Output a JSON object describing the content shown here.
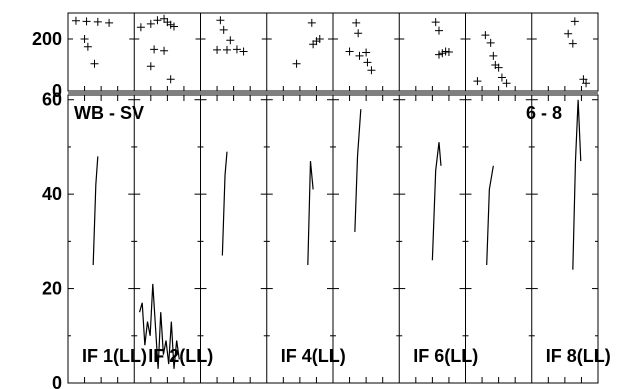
{
  "chart_data": {
    "type": "line",
    "title_left": "WB - SV",
    "title_right": "6 - 8",
    "top_panel": {
      "y_ticks": [
        0,
        200
      ],
      "ylim": [
        0,
        300
      ]
    },
    "main_panel": {
      "y_ticks": [
        0,
        20,
        40,
        60
      ],
      "ylim": [
        0,
        61
      ]
    },
    "panels": [
      {
        "label": "IF 1(LL)",
        "top_points": [
          [
            0.12,
            270
          ],
          [
            0.28,
            268
          ],
          [
            0.45,
            266
          ],
          [
            0.62,
            262
          ],
          [
            0.25,
            200
          ],
          [
            0.3,
            170
          ],
          [
            0.4,
            105
          ]
        ],
        "series": [
          [
            0.38,
            25
          ],
          [
            0.42,
            42
          ],
          [
            0.45,
            48
          ]
        ]
      },
      {
        "label": "IF 2(LL)",
        "top_points": [
          [
            0.1,
            245
          ],
          [
            0.25,
            258
          ],
          [
            0.35,
            272
          ],
          [
            0.45,
            278
          ],
          [
            0.5,
            265
          ],
          [
            0.55,
            255
          ],
          [
            0.6,
            248
          ],
          [
            0.3,
            160
          ],
          [
            0.45,
            155
          ],
          [
            0.25,
            95
          ],
          [
            0.55,
            45
          ]
        ],
        "series": [
          [
            0.08,
            15
          ],
          [
            0.12,
            17
          ],
          [
            0.16,
            8
          ],
          [
            0.2,
            13
          ],
          [
            0.24,
            10
          ],
          [
            0.28,
            21
          ],
          [
            0.32,
            12
          ],
          [
            0.36,
            3
          ],
          [
            0.4,
            15
          ],
          [
            0.44,
            6
          ],
          [
            0.48,
            9
          ],
          [
            0.52,
            4
          ],
          [
            0.56,
            13
          ],
          [
            0.6,
            3
          ],
          [
            0.64,
            9
          ],
          [
            0.68,
            5
          ]
        ]
      },
      {
        "label": "",
        "top_points": [
          [
            0.3,
            272
          ],
          [
            0.35,
            235
          ],
          [
            0.25,
            158
          ],
          [
            0.4,
            158
          ],
          [
            0.55,
            160
          ],
          [
            0.65,
            152
          ],
          [
            0.45,
            195
          ]
        ],
        "series": [
          [
            0.33,
            27
          ],
          [
            0.37,
            44
          ],
          [
            0.4,
            49
          ]
        ]
      },
      {
        "label": "IF 4(LL)",
        "top_points": [
          [
            0.68,
            262
          ],
          [
            0.7,
            180
          ],
          [
            0.75,
            192
          ],
          [
            0.8,
            200
          ],
          [
            0.45,
            105
          ]
        ],
        "series": [
          [
            0.62,
            25
          ],
          [
            0.66,
            47
          ],
          [
            0.7,
            41
          ]
        ]
      },
      {
        "label": "",
        "top_points": [
          [
            0.35,
            262
          ],
          [
            0.38,
            222
          ],
          [
            0.25,
            152
          ],
          [
            0.4,
            135
          ],
          [
            0.5,
            148
          ],
          [
            0.52,
            110
          ],
          [
            0.58,
            80
          ]
        ],
        "series": [
          [
            0.33,
            32
          ],
          [
            0.37,
            48
          ],
          [
            0.42,
            58
          ]
        ]
      },
      {
        "label": "IF 6(LL)",
        "top_points": [
          [
            0.55,
            265
          ],
          [
            0.6,
            232
          ],
          [
            0.65,
            145
          ],
          [
            0.7,
            152
          ],
          [
            0.75,
            150
          ],
          [
            0.6,
            140
          ]
        ],
        "series": [
          [
            0.5,
            26
          ],
          [
            0.55,
            45
          ],
          [
            0.6,
            51
          ],
          [
            0.63,
            46
          ]
        ]
      },
      {
        "label": "",
        "top_points": [
          [
            0.3,
            215
          ],
          [
            0.38,
            185
          ],
          [
            0.42,
            135
          ],
          [
            0.45,
            100
          ],
          [
            0.5,
            90
          ],
          [
            0.55,
            52
          ],
          [
            0.18,
            38
          ],
          [
            0.62,
            30
          ]
        ],
        "series": [
          [
            0.32,
            25
          ],
          [
            0.36,
            41
          ],
          [
            0.42,
            46
          ]
        ]
      },
      {
        "label": "IF 8(LL)",
        "top_points": [
          [
            0.65,
            268
          ],
          [
            0.62,
            182
          ],
          [
            0.55,
            220
          ],
          [
            0.78,
            45
          ],
          [
            0.82,
            30
          ]
        ],
        "series": [
          [
            0.62,
            24
          ],
          [
            0.66,
            47
          ],
          [
            0.7,
            60
          ],
          [
            0.74,
            47
          ]
        ]
      }
    ]
  }
}
